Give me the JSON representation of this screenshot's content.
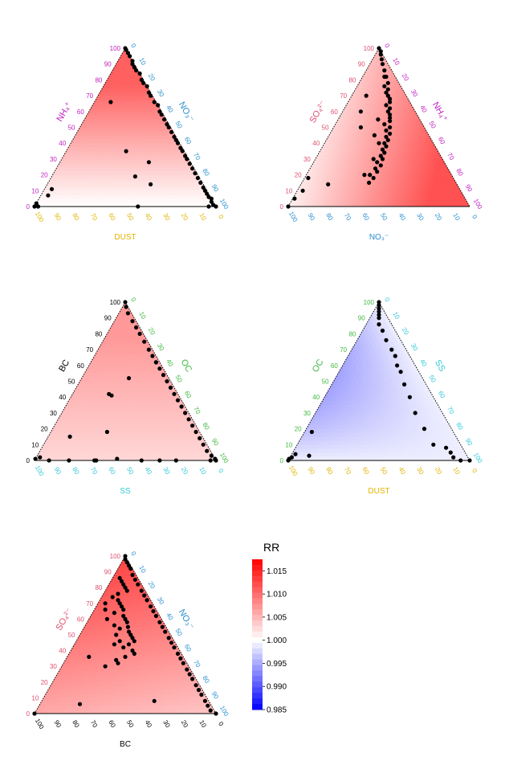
{
  "chart_data": [
    {
      "type": "scatter",
      "subtype": "ternary",
      "title": "",
      "axes": {
        "left": {
          "label": "NH₄⁺",
          "color": "#c020c0"
        },
        "right": {
          "label": "NO₃⁻",
          "color": "#2a8fd0"
        },
        "bottom": {
          "label": "DUST",
          "color": "#e0b400"
        }
      },
      "ticks": [
        "0",
        "10",
        "20",
        "30",
        "40",
        "50",
        "60",
        "70",
        "80",
        "90",
        "100"
      ],
      "points_units": "percent of left axis component (a) and right axis component (b)",
      "points": [
        [
          100,
          0
        ],
        [
          99,
          1
        ],
        [
          97,
          3
        ],
        [
          95,
          5
        ],
        [
          92,
          8
        ],
        [
          90,
          9
        ],
        [
          88,
          11
        ],
        [
          86,
          13
        ],
        [
          84,
          16
        ],
        [
          80,
          19
        ],
        [
          78,
          21
        ],
        [
          76,
          24
        ],
        [
          72,
          27
        ],
        [
          70,
          29
        ],
        [
          66,
          33
        ],
        [
          64,
          36
        ],
        [
          60,
          39
        ],
        [
          58,
          41
        ],
        [
          55,
          44
        ],
        [
          52,
          47
        ],
        [
          50,
          49
        ],
        [
          47,
          52
        ],
        [
          44,
          55
        ],
        [
          42,
          57
        ],
        [
          40,
          59
        ],
        [
          37,
          62
        ],
        [
          35,
          64
        ],
        [
          32,
          67
        ],
        [
          30,
          69
        ],
        [
          27,
          72
        ],
        [
          24,
          75
        ],
        [
          21,
          78
        ],
        [
          18,
          81
        ],
        [
          15,
          84
        ],
        [
          12,
          87
        ],
        [
          10,
          89
        ],
        [
          8,
          91
        ],
        [
          6,
          93
        ],
        [
          3,
          96
        ],
        [
          1,
          98
        ],
        [
          0,
          100
        ],
        [
          66,
          9
        ],
        [
          35,
          33
        ],
        [
          19,
          46
        ],
        [
          28,
          49
        ],
        [
          14,
          57
        ],
        [
          0,
          57
        ],
        [
          0,
          96
        ],
        [
          5,
          96
        ],
        [
          7,
          4
        ],
        [
          0,
          0
        ],
        [
          2,
          0
        ],
        [
          0,
          2
        ],
        [
          11,
          4
        ]
      ],
      "surface": {
        "min": 0.998,
        "max": 1.011
      }
    },
    {
      "type": "scatter",
      "subtype": "ternary",
      "title": "",
      "axes": {
        "left": {
          "label": "SO₄²⁻",
          "color": "#e05070"
        },
        "right": {
          "label": "NH₄⁺",
          "color": "#c020c0"
        },
        "bottom": {
          "label": "NO₃⁻",
          "color": "#2a8fd0"
        }
      },
      "ticks": [
        "0",
        "10",
        "20",
        "30",
        "40",
        "50",
        "60",
        "70",
        "80",
        "90",
        "100"
      ],
      "points_units": "percent of left axis component (a) and right axis component (b)",
      "points": [
        [
          100,
          0
        ],
        [
          98,
          2
        ],
        [
          96,
          3
        ],
        [
          93,
          5
        ],
        [
          90,
          7
        ],
        [
          86,
          10
        ],
        [
          82,
          13
        ],
        [
          78,
          16
        ],
        [
          74,
          18
        ],
        [
          70,
          20
        ],
        [
          66,
          23
        ],
        [
          62,
          25
        ],
        [
          58,
          27
        ],
        [
          54,
          29
        ],
        [
          50,
          31
        ],
        [
          46,
          33
        ],
        [
          42,
          34
        ],
        [
          38,
          35
        ],
        [
          34,
          36
        ],
        [
          30,
          37
        ],
        [
          26,
          38
        ],
        [
          22,
          38
        ],
        [
          18,
          38
        ],
        [
          15,
          37
        ],
        [
          72,
          18
        ],
        [
          68,
          22
        ],
        [
          60,
          25
        ],
        [
          56,
          28
        ],
        [
          48,
          30
        ],
        [
          44,
          32
        ],
        [
          40,
          33
        ],
        [
          36,
          34
        ],
        [
          32,
          35
        ],
        [
          28,
          35
        ],
        [
          24,
          36
        ],
        [
          20,
          35
        ],
        [
          82,
          12
        ],
        [
          76,
          15
        ],
        [
          64,
          22
        ],
        [
          52,
          27
        ],
        [
          40,
          30
        ],
        [
          30,
          32
        ],
        [
          20,
          32
        ],
        [
          55,
          22
        ],
        [
          45,
          25
        ],
        [
          60,
          10
        ],
        [
          50,
          15
        ],
        [
          70,
          8
        ],
        [
          10,
          3
        ],
        [
          18,
          2
        ],
        [
          14,
          15
        ],
        [
          5,
          1
        ],
        [
          0,
          0
        ]
      ],
      "surface": {
        "min": 1.001,
        "max": 1.012
      }
    },
    {
      "type": "scatter",
      "subtype": "ternary",
      "title": "",
      "axes": {
        "left": {
          "label": "BC",
          "color": "#000000"
        },
        "right": {
          "label": "OC",
          "color": "#40b840"
        },
        "bottom": {
          "label": "SS",
          "color": "#30c8d8"
        }
      },
      "ticks": [
        "0",
        "10",
        "20",
        "30",
        "40",
        "50",
        "60",
        "70",
        "80",
        "90",
        "100"
      ],
      "points_units": "percent of left axis component (a) and right axis component (b)",
      "points": [
        [
          100,
          0
        ],
        [
          97,
          2
        ],
        [
          93,
          5
        ],
        [
          88,
          10
        ],
        [
          84,
          14
        ],
        [
          80,
          18
        ],
        [
          75,
          23
        ],
        [
          70,
          28
        ],
        [
          66,
          32
        ],
        [
          62,
          36
        ],
        [
          58,
          40
        ],
        [
          54,
          44
        ],
        [
          50,
          48
        ],
        [
          46,
          52
        ],
        [
          42,
          56
        ],
        [
          38,
          60
        ],
        [
          34,
          64
        ],
        [
          30,
          68
        ],
        [
          26,
          72
        ],
        [
          22,
          76
        ],
        [
          18,
          80
        ],
        [
          14,
          84
        ],
        [
          10,
          88
        ],
        [
          6,
          92
        ],
        [
          3,
          96
        ],
        [
          0,
          100
        ],
        [
          62,
          36
        ],
        [
          52,
          26
        ],
        [
          42,
          20
        ],
        [
          41,
          22
        ],
        [
          18,
          31
        ],
        [
          15,
          12
        ],
        [
          2,
          2
        ],
        [
          1,
          0
        ],
        [
          0,
          8
        ],
        [
          0,
          19
        ],
        [
          0,
          33
        ],
        [
          0,
          34
        ],
        [
          1,
          45
        ],
        [
          0,
          59
        ],
        [
          0,
          69
        ],
        [
          0,
          78
        ],
        [
          0,
          97
        ],
        [
          1,
          99
        ]
      ],
      "surface": {
        "min": 1.002,
        "max": 1.007
      }
    },
    {
      "type": "scatter",
      "subtype": "ternary",
      "title": "",
      "axes": {
        "left": {
          "label": "OC",
          "color": "#40b840"
        },
        "right": {
          "label": "SS",
          "color": "#30c8d8"
        },
        "bottom": {
          "label": "DUST",
          "color": "#e0b400"
        }
      },
      "ticks": [
        "0",
        "10",
        "20",
        "30",
        "40",
        "50",
        "60",
        "70",
        "80",
        "90",
        "100"
      ],
      "points_units": "percent of left axis component (a) and right axis component (b)",
      "points": [
        [
          100,
          0
        ],
        [
          98,
          1
        ],
        [
          96,
          2
        ],
        [
          94,
          3
        ],
        [
          92,
          4
        ],
        [
          90,
          5
        ],
        [
          86,
          7
        ],
        [
          82,
          11
        ],
        [
          76,
          16
        ],
        [
          70,
          22
        ],
        [
          66,
          26
        ],
        [
          60,
          30
        ],
        [
          56,
          34
        ],
        [
          48,
          40
        ],
        [
          40,
          47
        ],
        [
          30,
          55
        ],
        [
          20,
          65
        ],
        [
          10,
          75
        ],
        [
          8,
          83
        ],
        [
          5,
          87
        ],
        [
          2,
          90
        ],
        [
          0,
          95
        ],
        [
          0,
          100
        ],
        [
          18,
          4
        ],
        [
          4,
          2
        ],
        [
          2,
          1
        ],
        [
          0,
          0
        ],
        [
          1,
          0
        ],
        [
          3,
          10
        ]
      ],
      "surface": {
        "min": 0.994,
        "max": 0.999
      }
    },
    {
      "type": "scatter",
      "subtype": "ternary",
      "title": "",
      "axes": {
        "left": {
          "label": "SO₄²⁻",
          "color": "#e05070"
        },
        "right": {
          "label": "NO₃⁻",
          "color": "#2a8fd0"
        },
        "bottom": {
          "label": "BC",
          "color": "#000000"
        }
      },
      "ticks": [
        "0",
        "10",
        "20",
        "30",
        "40",
        "50",
        "60",
        "70",
        "80",
        "90",
        "100"
      ],
      "points_units": "percent of left axis component (a) and right axis component (b)",
      "points": [
        [
          100,
          0
        ],
        [
          98,
          1
        ],
        [
          96,
          3
        ],
        [
          94,
          5
        ],
        [
          92,
          7
        ],
        [
          88,
          10
        ],
        [
          85,
          13
        ],
        [
          82,
          16
        ],
        [
          78,
          20
        ],
        [
          75,
          23
        ],
        [
          72,
          26
        ],
        [
          68,
          30
        ],
        [
          65,
          33
        ],
        [
          62,
          36
        ],
        [
          58,
          40
        ],
        [
          55,
          43
        ],
        [
          52,
          46
        ],
        [
          48,
          50
        ],
        [
          45,
          53
        ],
        [
          42,
          56
        ],
        [
          38,
          60
        ],
        [
          35,
          63
        ],
        [
          32,
          66
        ],
        [
          28,
          70
        ],
        [
          25,
          73
        ],
        [
          22,
          76
        ],
        [
          18,
          80
        ],
        [
          15,
          83
        ],
        [
          12,
          86
        ],
        [
          8,
          90
        ],
        [
          5,
          93
        ],
        [
          2,
          96
        ],
        [
          0,
          100
        ],
        [
          76,
          8
        ],
        [
          74,
          6
        ],
        [
          72,
          10
        ],
        [
          70,
          12
        ],
        [
          68,
          14
        ],
        [
          66,
          16
        ],
        [
          62,
          18
        ],
        [
          60,
          20
        ],
        [
          58,
          22
        ],
        [
          55,
          24
        ],
        [
          52,
          26
        ],
        [
          50,
          28
        ],
        [
          48,
          30
        ],
        [
          46,
          32
        ],
        [
          44,
          30
        ],
        [
          42,
          28
        ],
        [
          40,
          34
        ],
        [
          38,
          36
        ],
        [
          36,
          32
        ],
        [
          34,
          28
        ],
        [
          30,
          24
        ],
        [
          60,
          10
        ],
        [
          56,
          16
        ],
        [
          54,
          20
        ],
        [
          50,
          20
        ],
        [
          46,
          24
        ],
        [
          44,
          22
        ],
        [
          78,
          12
        ],
        [
          80,
          10
        ],
        [
          82,
          8
        ],
        [
          84,
          6
        ],
        [
          86,
          4
        ],
        [
          70,
          4
        ],
        [
          66,
          6
        ],
        [
          64,
          12
        ],
        [
          36,
          12
        ],
        [
          32,
          30
        ],
        [
          8,
          62
        ],
        [
          6,
          22
        ],
        [
          0,
          0
        ]
      ],
      "surface": {
        "min": 1.004,
        "max": 1.014
      }
    }
  ],
  "legend": {
    "title": "RR",
    "labels": [
      "1.015",
      "1.010",
      "1.005",
      "1.000",
      "0.995",
      "0.990",
      "0.985"
    ],
    "min": 0.985,
    "max": 1.0175,
    "colors": {
      "low": "#0000ff",
      "mid": "#ffffff",
      "high": "#ff0000"
    }
  }
}
